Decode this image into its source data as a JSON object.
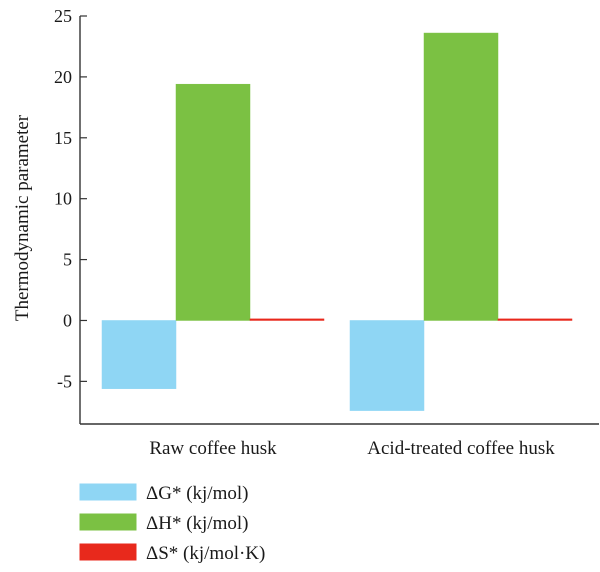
{
  "chart_data": {
    "type": "bar",
    "title": "",
    "xlabel": "",
    "ylabel": "Thermodynamic parameter",
    "ylim": [
      -8.5,
      25
    ],
    "yticks": [
      25,
      20,
      15,
      10,
      5,
      0,
      -5
    ],
    "ytick_labels": [
      "25",
      "20",
      "15",
      "10",
      "5",
      "0",
      "-5"
    ],
    "categories": [
      "Raw coffee husk",
      "Acid-treated coffee husk"
    ],
    "series": [
      {
        "name": "ΔG* (kj/mol)",
        "color": "#8fd6f4",
        "values": [
          -5.6,
          -7.4
        ]
      },
      {
        "name": "ΔH* (kj/mol)",
        "color": "#7bc143",
        "values": [
          19.4,
          23.6
        ]
      },
      {
        "name": "ΔS* (kj/mol·K)",
        "color": "#e8291c",
        "values": [
          0.05,
          0.05
        ]
      }
    ],
    "legend": {
      "placement": "bottom-left"
    },
    "grid": false
  }
}
